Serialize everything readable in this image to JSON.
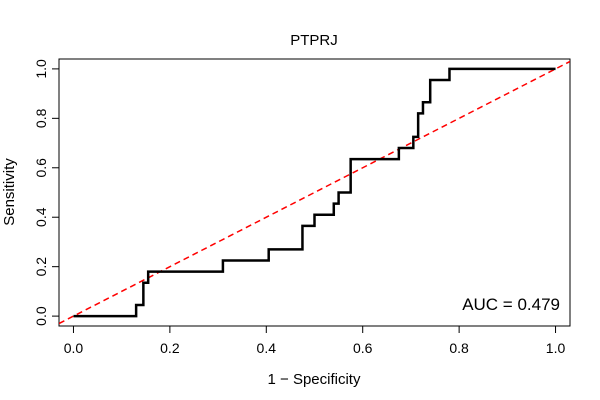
{
  "chart_data": {
    "type": "line",
    "title": "PTPRJ",
    "xlabel": "1 − Specificity",
    "ylabel": "Sensitivity",
    "xlim": [
      -0.03,
      1.03
    ],
    "ylim": [
      -0.04,
      1.04
    ],
    "x_ticks": [
      0.0,
      0.2,
      0.4,
      0.6,
      0.8,
      1.0
    ],
    "x_tick_labels": [
      "0.0",
      "0.2",
      "0.4",
      "0.6",
      "0.8",
      "1.0"
    ],
    "y_ticks": [
      0.0,
      0.2,
      0.4,
      0.6,
      0.8,
      1.0
    ],
    "y_tick_labels": [
      "0.0",
      "0.2",
      "0.4",
      "0.6",
      "0.8",
      "1.0"
    ],
    "grid": false,
    "annotation": "AUC = 0.479",
    "series": [
      {
        "style": "step",
        "color": "#000000",
        "x": [
          0.0,
          0.13,
          0.13,
          0.145,
          0.145,
          0.155,
          0.155,
          0.18,
          0.18,
          0.31,
          0.31,
          0.405,
          0.405,
          0.475,
          0.475,
          0.5,
          0.5,
          0.54,
          0.54,
          0.55,
          0.55,
          0.575,
          0.575,
          0.675,
          0.675,
          0.705,
          0.705,
          0.715,
          0.715,
          0.725,
          0.725,
          0.74,
          0.74,
          0.78,
          0.78,
          0.81,
          0.81,
          1.0
        ],
        "y": [
          0.0,
          0.0,
          0.045,
          0.045,
          0.135,
          0.135,
          0.18,
          0.18,
          0.18,
          0.18,
          0.225,
          0.225,
          0.27,
          0.27,
          0.365,
          0.365,
          0.41,
          0.41,
          0.455,
          0.455,
          0.5,
          0.5,
          0.635,
          0.635,
          0.68,
          0.68,
          0.725,
          0.725,
          0.82,
          0.82,
          0.865,
          0.865,
          0.955,
          0.955,
          1.0,
          1.0,
          1.0,
          1.0
        ]
      },
      {
        "style": "dashed",
        "color": "#ff0000",
        "x": [
          -0.03,
          1.03
        ],
        "y": [
          -0.03,
          1.03
        ]
      }
    ]
  }
}
